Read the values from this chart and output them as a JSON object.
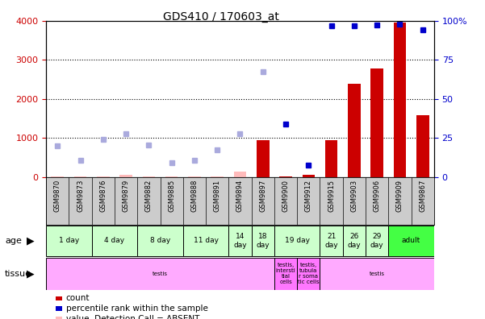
{
  "title": "GDS410 / 170603_at",
  "samples": [
    "GSM9870",
    "GSM9873",
    "GSM9876",
    "GSM9879",
    "GSM9882",
    "GSM9885",
    "GSM9888",
    "GSM9891",
    "GSM9894",
    "GSM9897",
    "GSM9900",
    "GSM9912",
    "GSM9915",
    "GSM9903",
    "GSM9906",
    "GSM9909",
    "GSM9867"
  ],
  "count_values": [
    25,
    25,
    25,
    50,
    25,
    25,
    25,
    25,
    130,
    950,
    25,
    50,
    950,
    2380,
    2780,
    3950,
    1580
  ],
  "rank_values": [
    800,
    420,
    960,
    1100,
    820,
    370,
    420,
    700,
    1100,
    2700,
    1350,
    300,
    3870,
    3880,
    3890,
    3920,
    3770
  ],
  "count_absent": [
    true,
    true,
    true,
    true,
    true,
    true,
    true,
    true,
    true,
    false,
    false,
    false,
    false,
    false,
    false,
    false,
    false
  ],
  "rank_absent": [
    true,
    true,
    true,
    true,
    true,
    true,
    true,
    true,
    true,
    true,
    false,
    false,
    false,
    false,
    false,
    false,
    false
  ],
  "age_groups": [
    {
      "label": "1 day",
      "start": 0,
      "end": 2,
      "color": "#ccffcc"
    },
    {
      "label": "4 day",
      "start": 2,
      "end": 4,
      "color": "#ccffcc"
    },
    {
      "label": "8 day",
      "start": 4,
      "end": 6,
      "color": "#ccffcc"
    },
    {
      "label": "11 day",
      "start": 6,
      "end": 8,
      "color": "#ccffcc"
    },
    {
      "label": "14\nday",
      "start": 8,
      "end": 9,
      "color": "#ccffcc"
    },
    {
      "label": "18\nday",
      "start": 9,
      "end": 10,
      "color": "#ccffcc"
    },
    {
      "label": "19 day",
      "start": 10,
      "end": 12,
      "color": "#ccffcc"
    },
    {
      "label": "21\nday",
      "start": 12,
      "end": 13,
      "color": "#ccffcc"
    },
    {
      "label": "26\nday",
      "start": 13,
      "end": 14,
      "color": "#ccffcc"
    },
    {
      "label": "29\nday",
      "start": 14,
      "end": 15,
      "color": "#ccffcc"
    },
    {
      "label": "adult",
      "start": 15,
      "end": 17,
      "color": "#44ff44"
    }
  ],
  "tissue_groups": [
    {
      "label": "testis",
      "start": 0,
      "end": 10,
      "color": "#ffaaff"
    },
    {
      "label": "testis,\nintersti\ntial\ncells",
      "start": 10,
      "end": 11,
      "color": "#ff77ff"
    },
    {
      "label": "testis,\ntubula\nr soma\ntic cells",
      "start": 11,
      "end": 12,
      "color": "#ff77ff"
    },
    {
      "label": "testis",
      "start": 12,
      "end": 17,
      "color": "#ffaaff"
    }
  ],
  "ylim_left": [
    0,
    4000
  ],
  "ylim_right": [
    0,
    100
  ],
  "yticks_left": [
    0,
    1000,
    2000,
    3000,
    4000
  ],
  "yticks_right": [
    0,
    25,
    50,
    75,
    100
  ],
  "bar_color": "#cc0000",
  "dot_color_present": "#0000cc",
  "dot_color_absent_rank": "#aaaadd",
  "dot_color_absent_count": "#ffbbbb",
  "bg_color": "#ffffff",
  "label_color_left": "#cc0000",
  "label_color_right": "#0000cc",
  "xtick_bg": "#cccccc"
}
